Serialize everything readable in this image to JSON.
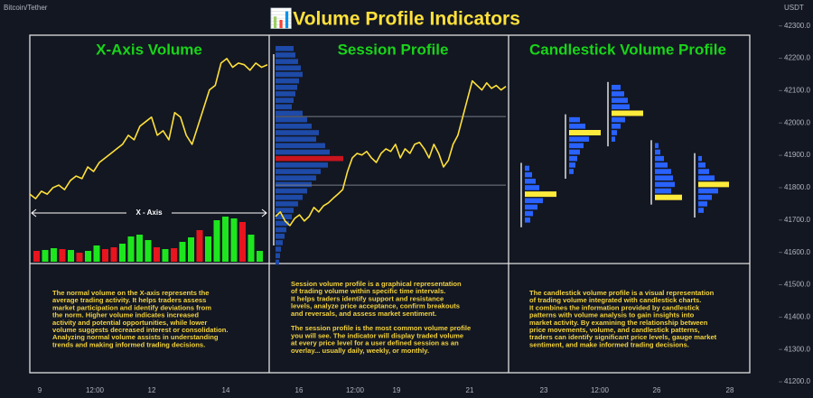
{
  "chart_data": {
    "type": "line",
    "title": "📊Volume Profile Indicators",
    "pair_label": "Bitcoin/Tether",
    "currency": "USDT",
    "x_axis_label": "X - Axis",
    "ylim": [
      41150,
      42380
    ],
    "yticks": [
      {
        "value": 42300,
        "label": "42300.0"
      },
      {
        "value": 42200,
        "label": "42200.0"
      },
      {
        "value": 42100,
        "label": "42100.0"
      },
      {
        "value": 42000,
        "label": "42000.0"
      },
      {
        "value": 41900,
        "label": "41900.0"
      },
      {
        "value": 41800,
        "label": "41800.0"
      },
      {
        "value": 41700,
        "label": "41700.0"
      },
      {
        "value": 41600,
        "label": "41600.0"
      },
      {
        "value": 41500,
        "label": "41500.0"
      },
      {
        "value": 41400,
        "label": "41400.0"
      },
      {
        "value": 41300,
        "label": "41300.0"
      },
      {
        "value": 41200,
        "label": "41200.0"
      }
    ],
    "xlabels": [
      "9",
      "12:00",
      "12",
      "14",
      "16",
      "12:00",
      "19",
      "21",
      "23",
      "12:00",
      "26",
      "28"
    ],
    "line_color": "#ffe13a",
    "series": [
      {
        "values": [
          41780,
          41766,
          41789,
          41780,
          41800,
          41808,
          41794,
          41822,
          41836,
          41828,
          41864,
          41850,
          41878,
          41892,
          41906,
          41920,
          41934,
          41962,
          41948,
          41990,
          42004,
          42018,
          41962,
          41976,
          41948,
          42032,
          42018,
          41962,
          41934,
          41990,
          42046,
          42102,
          42116,
          42185,
          42199,
          42172,
          42185,
          42180,
          42163,
          42185,
          42172,
          42180
        ]
      },
      {
        "values": [
          41711,
          41725,
          41697,
          41683,
          41705,
          41716,
          41697,
          41711,
          41739,
          41725,
          41744,
          41753,
          41767,
          41780,
          41794,
          41850,
          41892,
          41906,
          41901,
          41912,
          41892,
          41878,
          41906,
          41920,
          41912,
          41934,
          41892,
          41920,
          41906,
          41934,
          41940,
          41920,
          41892,
          41934,
          41906,
          41864,
          41884,
          41934,
          41962,
          42018,
          42074,
          42130,
          42116,
          42102,
          42124,
          42107,
          42116,
          42102,
          42113
        ]
      }
    ],
    "volume": {
      "values": [
        12,
        13,
        15,
        14,
        13,
        10,
        12,
        18,
        14,
        16,
        20,
        28,
        30,
        24,
        16,
        14,
        15,
        22,
        27,
        35,
        28,
        46,
        50,
        48,
        44,
        30,
        12
      ],
      "colors": [
        "#e8141e",
        "#1ee61e",
        "#1ee61e",
        "#e8141e",
        "#1ee61e",
        "#e8141e",
        "#1ee61e",
        "#1ee61e",
        "#e8141e",
        "#e8141e",
        "#1ee61e",
        "#1ee61e",
        "#1ee61e",
        "#1ee61e",
        "#e8141e",
        "#1ee61e",
        "#e8141e",
        "#1ee61e",
        "#1ee61e",
        "#e8141e",
        "#1ee61e",
        "#1ee61e",
        "#1ee61e",
        "#1ee61e",
        "#e8141e",
        "#1ee61e",
        "#1ee61e"
      ]
    },
    "session_profile": {
      "color": "#1e4aa8",
      "poc_color": "#c8141e",
      "value_area_color": "#787b86",
      "value_area_high": 42020,
      "value_area_low": 41808,
      "prices": [
        42230,
        42210,
        42190,
        42170,
        42150,
        42130,
        42110,
        42090,
        42070,
        42050,
        42030,
        42010,
        41990,
        41970,
        41950,
        41930,
        41910,
        41890,
        41870,
        41850,
        41830,
        41810,
        41790,
        41770,
        41750,
        41730,
        41710,
        41690,
        41670,
        41650,
        41630,
        41610,
        41590,
        41570
      ],
      "volumes": [
        20,
        22,
        25,
        28,
        30,
        26,
        24,
        22,
        20,
        18,
        30,
        35,
        40,
        48,
        45,
        55,
        60,
        75,
        58,
        50,
        45,
        40,
        35,
        30,
        25,
        20,
        18,
        15,
        12,
        10,
        8,
        6,
        5,
        4
      ]
    },
    "candle_profiles": {
      "color": "#2962ff",
      "poc_color": "#ffeb3b",
      "clusters": [
        {
          "prices": [
            41860,
            41840,
            41820,
            41800,
            41780,
            41760,
            41740,
            41720,
            41700
          ],
          "volumes": [
            5,
            8,
            12,
            16,
            35,
            20,
            14,
            9,
            6
          ]
        },
        {
          "prices": [
            42010,
            41990,
            41970,
            41950,
            41930,
            41910,
            41890,
            41870,
            41850
          ],
          "volumes": [
            12,
            18,
            35,
            22,
            16,
            12,
            9,
            7,
            5
          ]
        },
        {
          "prices": [
            42110,
            42090,
            42070,
            42050,
            42030,
            42010,
            41990,
            41970,
            41950
          ],
          "volumes": [
            10,
            14,
            18,
            20,
            35,
            15,
            10,
            6,
            4
          ]
        },
        {
          "prices": [
            41930,
            41910,
            41890,
            41870,
            41850,
            41830,
            41810,
            41790,
            41770
          ],
          "volumes": [
            4,
            6,
            10,
            14,
            18,
            20,
            22,
            18,
            30
          ]
        },
        {
          "prices": [
            41890,
            41870,
            41850,
            41830,
            41810,
            41790,
            41770,
            41750,
            41730
          ],
          "volumes": [
            4,
            8,
            12,
            18,
            34,
            22,
            15,
            10,
            6
          ]
        }
      ]
    },
    "panels": [
      {
        "title": "X-Axis Volume",
        "paragraphs": [
          {
            "lines": [
              "The normal volume on the X-axis represents the",
              "average trading activity. It helps traders assess",
              "market participation and identify deviations from",
              "the norm. Higher volume indicates increased",
              "activity and potential opportunities, while lower",
              "volume suggests decreased interest or consolidation.",
              "Analyzing normal volume assists in understanding",
              "trends and making informed trading decisions."
            ]
          }
        ]
      },
      {
        "title": "Session Profile",
        "paragraphs": [
          {
            "lines": [
              "Session volume profile is a graphical representation",
              "of trading volume within specific time intervals.",
              "It helps traders identify support and resistance",
              "levels, analyze price acceptance, confirm breakouts",
              "and reversals, and assess market sentiment."
            ]
          },
          {
            "lines": [
              "The session profile is the most common volume profile",
              "you will see. The indicator will display traded volume",
              "at every price level for a user defined session as an",
              "overlay... usually daily, weekly, or monthly."
            ]
          }
        ]
      },
      {
        "title": "Candlestick Volume Profile",
        "paragraphs": [
          {
            "lines": [
              "The candlestick volume profile is a visual representation",
              "of trading volume integrated with candlestick charts.",
              "It combines the information provided by candlestick",
              "patterns with volume analysis to gain insights into",
              "market activity. By examining the relationship between",
              "price movements, volume, and candlestick patterns,",
              "traders can identify significant price levels, gauge market",
              "sentiment, and make informed trading decisions."
            ]
          }
        ]
      }
    ]
  }
}
